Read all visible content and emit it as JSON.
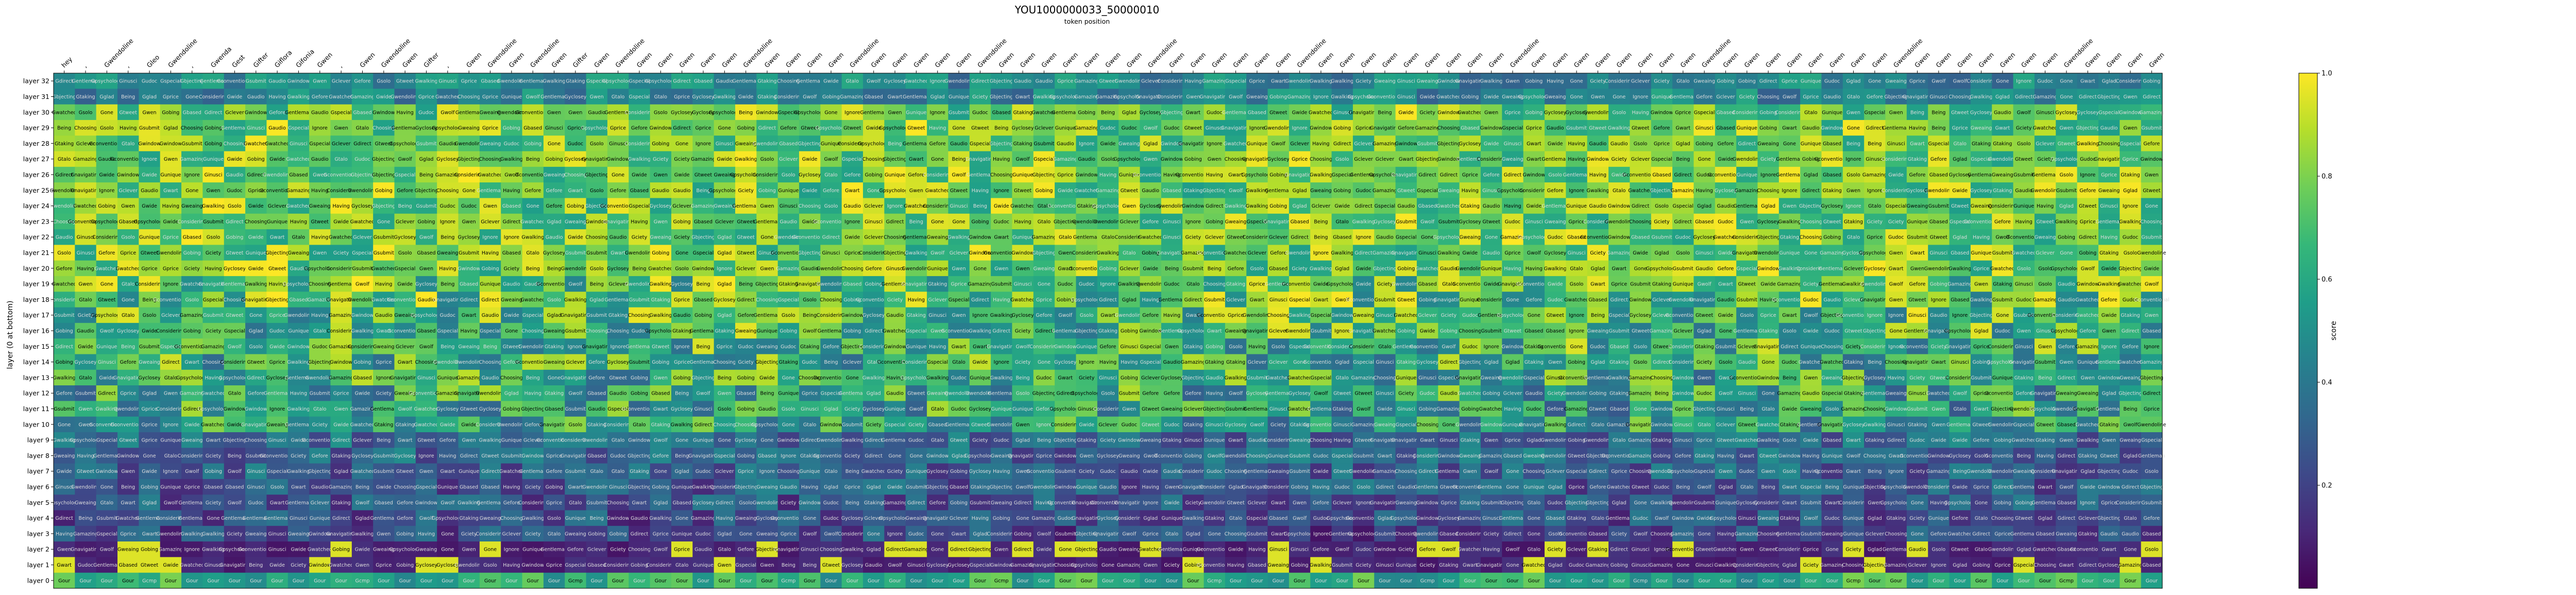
{
  "figure": {
    "title": "YOU1000000033_50000010",
    "subtitle": "token position"
  },
  "chart_data": {
    "type": "heatmap",
    "title": "YOU1000000033_50000010",
    "xlabel": "token position",
    "ylabel": "layer (0 at bottom)",
    "x_tick_labels": [
      "hey",
      ",",
      "Gwendoline",
      ",",
      "Gleo",
      "Gwendoline",
      ",",
      "Gwenda",
      "Gest",
      "Gifter",
      "Giflora",
      "Gifonia",
      "Gwen",
      ",",
      "Gwen",
      "Gwendoline",
      "Gwen",
      "Gifter",
      ",",
      "Gwen",
      "Gwendoline",
      "Gwen",
      "Gwendoline",
      "Gwen",
      "Gifter",
      "Gwen",
      "Gwendoline",
      "Gwen",
      "Gwen",
      "Gwen",
      "Gwen",
      "Gwen",
      "Gwendoline",
      "Gwen",
      "Gwen",
      "Gwen",
      "Gwen",
      "Gwendoline",
      "Gwen",
      "Gwen",
      "Gwen",
      "Gwen",
      "Gwen",
      "Gwendoline",
      "Gwen",
      "Gwen",
      "Gwen",
      "Gwen",
      "Gwen",
      "Gwen",
      "Gwen",
      "Gwendoline",
      "Gwen",
      "Gwen",
      "Gwen",
      "Gwen",
      "Gwen",
      "Gwen",
      "Gwendoline",
      "Gwen",
      "Gwen",
      "Gwen",
      "Gwen",
      "Gwen",
      "Gwen",
      "Gwen",
      "Gwen",
      "Gwen",
      "Gwendoline",
      "Gwen",
      "Gwen",
      "Gwen",
      "Gwen",
      "Gwen",
      "Gwen",
      "Gwen",
      "Gwen",
      "Gwendoline",
      "Gwen",
      "Gwen",
      "Gwen",
      "Gwen",
      "Gwen",
      "Gwen",
      "Gwen",
      "Gwen",
      "Gwendoline",
      "Gwen",
      "Gwen",
      "Gwen",
      "Gwen",
      "Gwen",
      "Gwen",
      "Gwen",
      "Gwendoline",
      "Gwen",
      "Gwen",
      "Gwen",
      "Gwen"
    ],
    "layers": [
      32,
      31,
      30,
      29,
      28,
      27,
      26,
      25,
      24,
      23,
      22,
      21,
      20,
      19,
      18,
      17,
      16,
      15,
      14,
      13,
      12,
      11,
      10,
      9,
      8,
      7,
      6,
      5,
      4,
      3,
      2,
      1,
      0
    ],
    "layer_label_prefix": "layer",
    "cell_word_palette": [
      "Being",
      "Gwendoline",
      "Ginusci",
      "Gbjecting",
      "Gconventional",
      "Gciety",
      "Gyclosey",
      "Gnavigating",
      "Gudoc",
      "Ignore",
      "Considering",
      "Gwalking",
      "Gaudio",
      "Gpsychology",
      "Having",
      "Gwen",
      "Gprice",
      "Gtalo",
      "Choosing",
      "Gunique",
      "Gbased",
      "Gsubmit",
      "Gweaing",
      "Gentleman",
      "Gobing",
      "Gone",
      "Gclever",
      "Gwart",
      "Gamazing",
      "Gtaking",
      "Gefore",
      "Gwolf",
      "Gdirect",
      "Gsolo",
      "Gtweet",
      "Gwindow",
      "Gwatched",
      "Gspecial",
      "Gglad",
      "Gwide"
    ],
    "bottom_row_words": [
      "Gour",
      "Gour",
      "Gour",
      "Gour",
      "Gcmp",
      "Gour",
      "Gour",
      "Gour",
      "Gour",
      "Gour"
    ],
    "value_range": [
      0,
      1
    ],
    "colorbar": {
      "label": "score",
      "ticks": [
        "0.2",
        "0.4",
        "0.6",
        "0.8",
        "1.0"
      ],
      "tick_values": [
        0.2,
        0.4,
        0.6,
        0.8,
        1.0
      ]
    },
    "colormap": "viridis",
    "colormap_stops": [
      "#440154",
      "#482878",
      "#3e4989",
      "#31688e",
      "#26828e",
      "#1f9e89",
      "#35b779",
      "#6ece58",
      "#b5de2b",
      "#fde725"
    ],
    "grid": false,
    "legend": "colorbar-right"
  }
}
